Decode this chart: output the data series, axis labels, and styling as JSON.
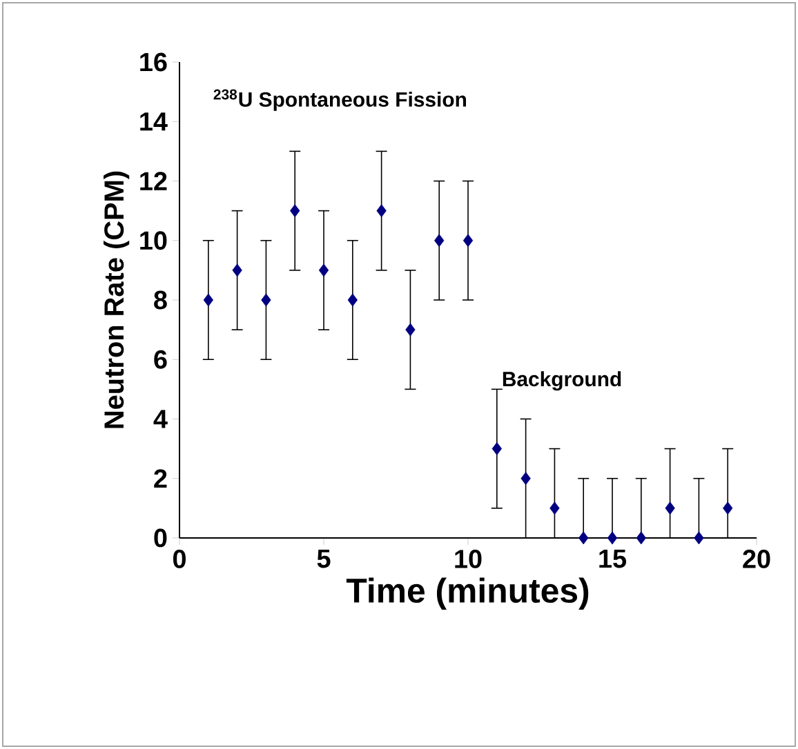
{
  "chart_data": {
    "type": "scatter",
    "xlabel": "Time (minutes)",
    "ylabel": "Neutron Rate (CPM)",
    "annotations": [
      "$^{238}$U Spontaneous Fission",
      "Background"
    ],
    "x": [
      1,
      2,
      3,
      4,
      5,
      6,
      7,
      8,
      9,
      10,
      11,
      12,
      13,
      14,
      15,
      16,
      17,
      18,
      19
    ],
    "values": [
      8,
      9,
      8,
      11,
      9,
      8,
      11,
      7,
      10,
      10,
      3,
      2,
      1,
      0,
      0,
      0,
      1,
      0,
      1
    ],
    "errors": [
      2,
      2,
      2,
      2,
      2,
      2,
      2,
      2,
      2,
      2,
      2,
      2,
      [
        0,
        3
      ],
      [
        0,
        2
      ],
      [
        0,
        2
      ],
      [
        0,
        2
      ],
      [
        0,
        3
      ],
      [
        0,
        2
      ],
      [
        0,
        3
      ]
    ],
    "color": "#000080",
    "marker": "diamond",
    "xlim": [
      0,
      20
    ],
    "ylim": [
      0,
      16
    ],
    "xticks": [
      0,
      5,
      10,
      15,
      20
    ],
    "yticks": [
      0,
      2,
      4,
      6,
      8,
      10,
      12,
      14,
      16
    ]
  }
}
